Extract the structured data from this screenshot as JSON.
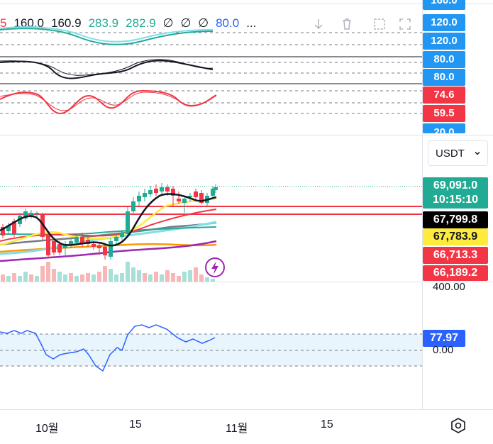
{
  "legend": {
    "values": [
      {
        "text": "5",
        "color": "#f23645"
      },
      {
        "text": "160.0",
        "color": "#131722"
      },
      {
        "text": "160.9",
        "color": "#131722"
      },
      {
        "text": "283.9",
        "color": "#22ab94"
      },
      {
        "text": "282.9",
        "color": "#22ab94"
      },
      {
        "text": "∅",
        "color": "#131722"
      },
      {
        "text": "∅",
        "color": "#131722"
      },
      {
        "text": "∅",
        "color": "#131722"
      },
      {
        "text": "80.0",
        "color": "#2962ff"
      },
      {
        "text": "...",
        "color": "#131722"
      }
    ]
  },
  "osc_scale": {
    "top_partial": "160.0",
    "tags": [
      {
        "text": "120.0",
        "color": "#2196f3"
      },
      {
        "text": "120.0",
        "color": "#2196f3"
      },
      {
        "text": "80.0",
        "color": "#2196f3"
      },
      {
        "text": "80.0",
        "color": "#2196f3"
      },
      {
        "text": "74.6",
        "color": "#f23645"
      },
      {
        "text": "59.5",
        "color": "#f23645"
      },
      {
        "text": "20.0",
        "color": "#2196f3"
      }
    ]
  },
  "currency_select": {
    "value": "USDT"
  },
  "price_scale": {
    "current_price": "69,091.0",
    "countdown": "10:15:10",
    "level_black": "67,799.8",
    "level_yellow": "67,783.9",
    "level_red_1": "66,713.3",
    "level_red_2": "66,189.2",
    "volume_label": "400.00"
  },
  "rsi_scale": {
    "value": "77.97",
    "zero": "0.00"
  },
  "time_axis": {
    "labels": [
      "10월",
      "15",
      "11월",
      "15"
    ]
  },
  "colors": {
    "grid": "#e0e3eb",
    "up": "#22ab94",
    "down": "#f23645",
    "blue": "#2196f3",
    "rsi_line": "#2962ff"
  }
}
